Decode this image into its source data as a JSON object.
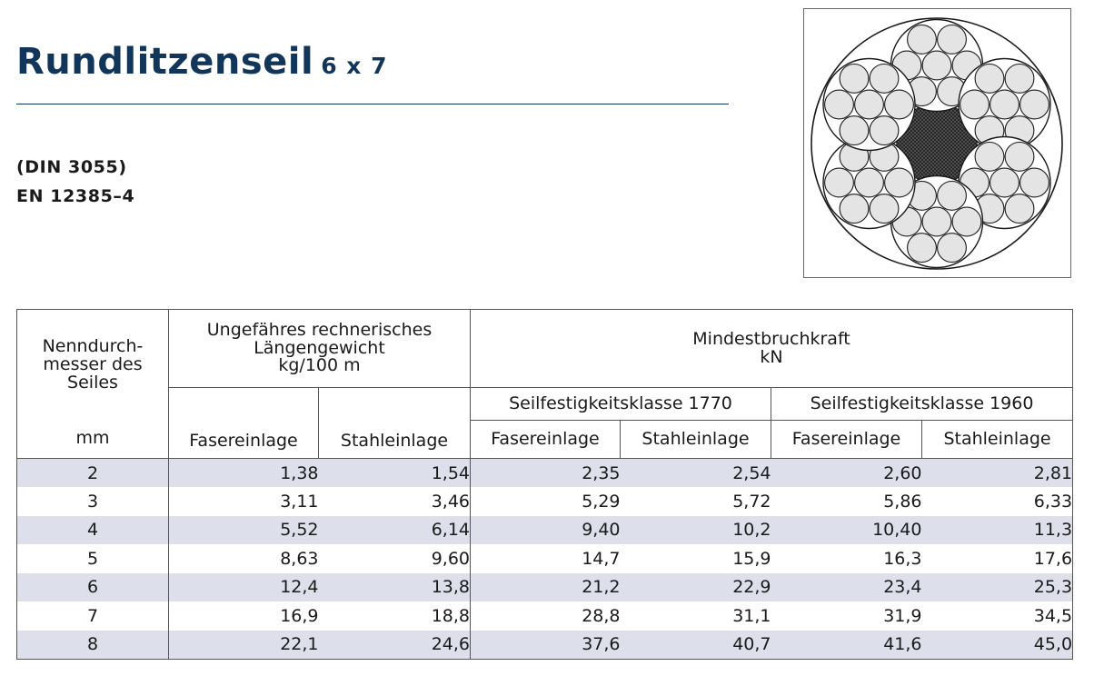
{
  "title": "Rundlitzenseil",
  "title_suffix": "6 x 7",
  "standards": [
    "(DIN 3055)",
    "EN 12385–4"
  ],
  "table": {
    "col_diameter": [
      "Nenndurch-",
      "messer des",
      "Seiles"
    ],
    "col_diameter_unit": "mm",
    "group_weight": [
      "Ungefähres rechnerisches",
      "Längengewicht",
      "kg/100 m"
    ],
    "group_force": [
      "Mindestbruchkraft",
      "kN"
    ],
    "class_1770": "Seilfestigkeitsklasse 1770",
    "class_1960": "Seilfestigkeitsklasse 1960",
    "sub_fiber": "Fasereinlage",
    "sub_steel": "Stahleinlage",
    "rows": [
      [
        "2",
        "1,38",
        "1,54",
        "2,35",
        "2,54",
        "2,60",
        "2,81"
      ],
      [
        "3",
        "3,11",
        "3,46",
        "5,29",
        "5,72",
        "5,86",
        "6,33"
      ],
      [
        "4",
        "5,52",
        "6,14",
        "9,40",
        "10,2",
        "10,40",
        "11,3"
      ],
      [
        "5",
        "8,63",
        "9,60",
        "14,7",
        "15,9",
        "16,3",
        "17,6"
      ],
      [
        "6",
        "12,4",
        "13,8",
        "21,2",
        "22,9",
        "23,4",
        "25,3"
      ],
      [
        "7",
        "16,9",
        "18,8",
        "28,8",
        "31,1",
        "31,9",
        "34,5"
      ],
      [
        "8",
        "22,1",
        "24,6",
        "37,6",
        "40,7",
        "41,6",
        "45,0"
      ]
    ]
  },
  "colors": {
    "title": "#12365a",
    "row_band": "#dde0ea",
    "core_fill": "#3a3a3a",
    "wire_fill": "#e4e4e4"
  }
}
